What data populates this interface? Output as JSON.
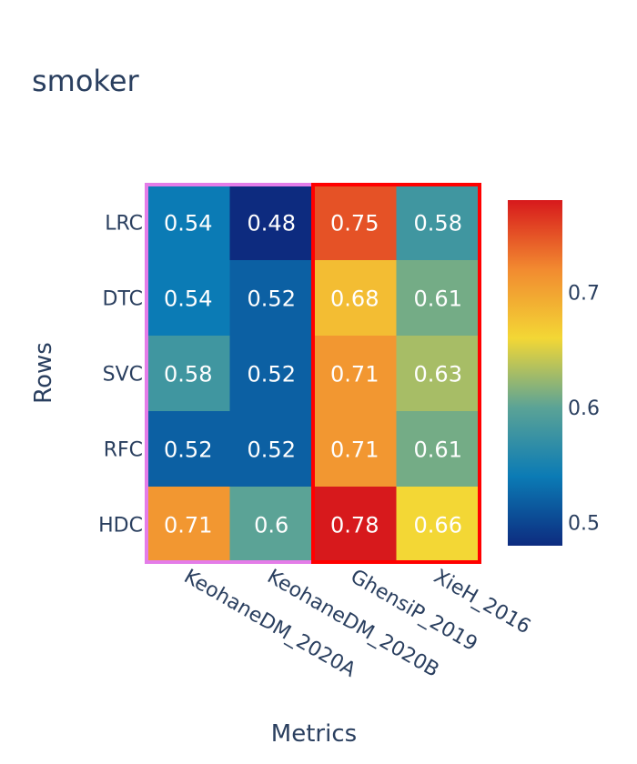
{
  "chart_data": {
    "type": "heatmap",
    "title": "smoker",
    "xlabel": "Metrics",
    "ylabel": "Rows",
    "x_categories": [
      "KeohaneDM_2020A",
      "KeohaneDM_2020B",
      "GhensiP_2019",
      "XieH_2016"
    ],
    "y_categories": [
      "LRC",
      "DTC",
      "SVC",
      "RFC",
      "HDC"
    ],
    "values": [
      [
        0.54,
        0.48,
        0.75,
        0.58
      ],
      [
        0.54,
        0.52,
        0.68,
        0.61
      ],
      [
        0.58,
        0.52,
        0.71,
        0.63
      ],
      [
        0.52,
        0.52,
        0.71,
        0.61
      ],
      [
        0.71,
        0.6,
        0.78,
        0.66
      ]
    ],
    "cell_labels": [
      [
        "0.54",
        "0.48",
        "0.75",
        "0.58"
      ],
      [
        "0.54",
        "0.52",
        "0.68",
        "0.61"
      ],
      [
        "0.58",
        "0.52",
        "0.71",
        "0.63"
      ],
      [
        "0.52",
        "0.52",
        "0.71",
        "0.61"
      ],
      [
        "0.71",
        "0.6",
        "0.78",
        "0.66"
      ]
    ],
    "zmin": 0.48,
    "zmax": 0.78,
    "colorscale": [
      "#0d2b7f",
      "#0b7bb5",
      "#5ba396",
      "#f3d735",
      "#f28a30",
      "#d7191c"
    ],
    "colorbar": {
      "tick_values": [
        0.5,
        0.6,
        0.7
      ],
      "tick_labels": [
        "0.5",
        "0.6",
        "0.7"
      ]
    },
    "group_boxes": [
      {
        "columns": [
          0,
          1
        ],
        "color": "#e47ce8"
      },
      {
        "columns": [
          2,
          3
        ],
        "color": "#ff0000"
      }
    ]
  }
}
